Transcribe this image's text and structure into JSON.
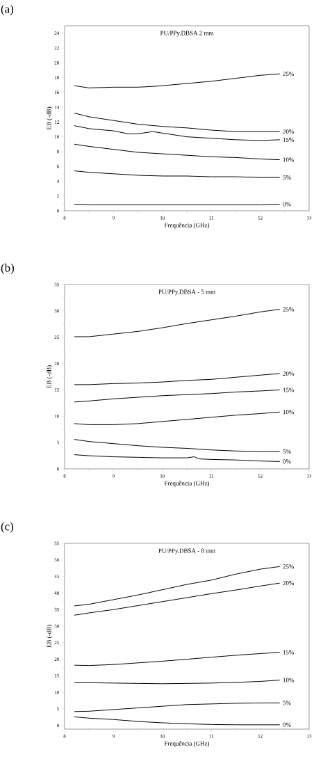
{
  "chart_data": [
    {
      "type": "line",
      "title": "PU/PPy.DBSA 2 mm",
      "xlabel": "Frequência (GHz)",
      "ylabel": "EB (-dB)",
      "annotations": [
        "(a)"
      ],
      "xlim": [
        8,
        13
      ],
      "ylim": [
        0,
        25
      ],
      "xticks": [
        8,
        9,
        10,
        11,
        12,
        13
      ],
      "yticks": [
        0,
        2,
        4,
        6,
        8,
        10,
        12,
        14,
        16,
        18,
        20,
        22,
        24
      ],
      "series": [
        {
          "name": "25%",
          "color": "#000000",
          "x": [
            8.2,
            8.5,
            9,
            9.5,
            9.8,
            10,
            10.5,
            11,
            11.5,
            12,
            12.4
          ],
          "values": [
            16.9,
            16.6,
            16.7,
            16.7,
            16.8,
            16.9,
            17.2,
            17.5,
            17.9,
            18.3,
            18.5
          ]
        },
        {
          "name": "20%",
          "color": "#000000",
          "x": [
            8.2,
            8.5,
            9,
            9.5,
            10,
            10.5,
            11,
            11.5,
            12,
            12.4
          ],
          "values": [
            13.2,
            12.7,
            12.2,
            11.7,
            11.4,
            11.2,
            10.9,
            10.7,
            10.7,
            10.7
          ]
        },
        {
          "name": "15%",
          "color": "#000000",
          "x": [
            8.2,
            8.5,
            9,
            9.3,
            9.5,
            9.8,
            10,
            10.5,
            11,
            11.5,
            12,
            12.4
          ],
          "values": [
            11.5,
            11.1,
            10.8,
            10.4,
            10.4,
            10.7,
            10.5,
            10.0,
            9.8,
            9.6,
            9.5,
            9.6
          ]
        },
        {
          "name": "10%",
          "color": "#000000",
          "x": [
            8.2,
            8.5,
            9,
            9.5,
            10,
            10.5,
            11,
            11.5,
            12,
            12.4
          ],
          "values": [
            9.0,
            8.7,
            8.3,
            7.9,
            7.7,
            7.5,
            7.3,
            7.2,
            7.0,
            6.9
          ]
        },
        {
          "name": "5%",
          "color": "#000000",
          "x": [
            8.2,
            8.5,
            9,
            9.5,
            10,
            10.5,
            11,
            11.5,
            12,
            12.4
          ],
          "values": [
            5.4,
            5.2,
            5.0,
            4.8,
            4.7,
            4.7,
            4.6,
            4.6,
            4.5,
            4.5
          ]
        },
        {
          "name": "0%",
          "color": "#000000",
          "x": [
            8.2,
            8.5,
            9,
            9.5,
            10,
            10.5,
            11,
            11.5,
            12,
            12.4
          ],
          "values": [
            0.9,
            0.8,
            0.8,
            0.8,
            0.8,
            0.8,
            0.8,
            0.8,
            0.8,
            0.9
          ]
        }
      ]
    },
    {
      "type": "line",
      "title": "PU/PPy.DBSA - 5 mm",
      "xlabel": "Frequência (GHz)",
      "ylabel": "EB (-dB)",
      "annotations": [
        "(b)"
      ],
      "xlim": [
        8,
        13
      ],
      "ylim": [
        0,
        35
      ],
      "xticks": [
        8,
        9,
        10,
        11,
        12,
        13
      ],
      "yticks": [
        0,
        5,
        10,
        15,
        20,
        25,
        30,
        35
      ],
      "series": [
        {
          "name": "25%",
          "color": "#000000",
          "x": [
            8.2,
            8.5,
            9,
            9.5,
            10,
            10.5,
            11,
            11.5,
            12,
            12.4
          ],
          "values": [
            25.1,
            25.1,
            25.6,
            26.1,
            26.8,
            27.6,
            28.3,
            29.0,
            29.8,
            30.3
          ]
        },
        {
          "name": "20%",
          "color": "#000000",
          "x": [
            8.2,
            8.5,
            9,
            9.5,
            10,
            10.5,
            11,
            11.5,
            12,
            12.4
          ],
          "values": [
            16.0,
            16.0,
            16.2,
            16.3,
            16.5,
            16.8,
            17.0,
            17.4,
            17.8,
            18.1
          ]
        },
        {
          "name": "15%",
          "color": "#000000",
          "x": [
            8.2,
            8.5,
            9,
            9.5,
            10,
            10.5,
            11,
            11.5,
            12,
            12.4
          ],
          "values": [
            12.7,
            12.9,
            13.3,
            13.6,
            13.9,
            14.1,
            14.3,
            14.6,
            14.8,
            15.0
          ]
        },
        {
          "name": "10%",
          "color": "#000000",
          "x": [
            8.2,
            8.5,
            9,
            9.5,
            10,
            10.5,
            11,
            11.5,
            12,
            12.4
          ],
          "values": [
            8.6,
            8.4,
            8.4,
            8.6,
            9.0,
            9.4,
            9.8,
            10.2,
            10.5,
            10.8
          ]
        },
        {
          "name": "5%",
          "color": "#000000",
          "x": [
            8.2,
            8.5,
            9,
            9.5,
            10,
            10.5,
            11,
            11.5,
            12,
            12.4
          ],
          "values": [
            5.6,
            5.2,
            4.8,
            4.4,
            4.1,
            3.9,
            3.6,
            3.4,
            3.3,
            3.3
          ]
        },
        {
          "name": "0%",
          "color": "#000000",
          "x": [
            8.2,
            8.5,
            9,
            9.5,
            10,
            10.5,
            10.65,
            10.75,
            11,
            11.5,
            12,
            12.4
          ],
          "values": [
            2.7,
            2.5,
            2.3,
            2.2,
            2.1,
            2.1,
            2.3,
            1.9,
            1.8,
            1.7,
            1.5,
            1.4
          ]
        }
      ]
    },
    {
      "type": "line",
      "title": "PU/PPy.DBSA - 8 mm",
      "xlabel": "Frequência (GHz)",
      "ylabel": "EB (-dB)",
      "annotations": [
        "(c)"
      ],
      "xlim": [
        8,
        13
      ],
      "ylim": [
        -1.1,
        55
      ],
      "xticks": [
        8,
        9,
        10,
        11,
        12,
        13
      ],
      "yticks": [
        0,
        5,
        10,
        15,
        20,
        25,
        30,
        35,
        40,
        45,
        50,
        55
      ],
      "series": [
        {
          "name": "25%",
          "color": "#000000",
          "x": [
            8.2,
            8.5,
            9,
            9.5,
            10,
            10.5,
            11,
            11.5,
            12,
            12.4
          ],
          "values": [
            36.1,
            36.6,
            38.0,
            39.4,
            41.0,
            42.6,
            43.9,
            45.7,
            47.2,
            48.0
          ]
        },
        {
          "name": "20%",
          "color": "#000000",
          "x": [
            8.2,
            8.5,
            9,
            9.5,
            10,
            10.5,
            11,
            11.5,
            12,
            12.4
          ],
          "values": [
            33.3,
            34.0,
            35.0,
            36.2,
            37.4,
            38.6,
            39.8,
            40.9,
            42.1,
            43.0
          ]
        },
        {
          "name": "15%",
          "color": "#000000",
          "x": [
            8.2,
            8.5,
            9,
            9.5,
            10,
            10.5,
            11,
            11.5,
            12,
            12.4
          ],
          "values": [
            18.2,
            18.1,
            18.4,
            18.9,
            19.4,
            20.0,
            20.6,
            21.2,
            21.7,
            22.1
          ]
        },
        {
          "name": "10%",
          "color": "#000000",
          "x": [
            8.2,
            8.5,
            9,
            9.5,
            10,
            10.5,
            11,
            11.5,
            12,
            12.4
          ],
          "values": [
            12.9,
            12.9,
            12.8,
            12.7,
            12.6,
            12.7,
            12.8,
            13.0,
            13.3,
            13.7
          ]
        },
        {
          "name": "5%",
          "color": "#000000",
          "x": [
            8.2,
            8.5,
            9,
            9.5,
            10,
            10.5,
            11,
            11.5,
            12,
            12.4
          ],
          "values": [
            4.2,
            4.3,
            4.8,
            5.3,
            5.8,
            6.3,
            6.5,
            6.7,
            6.8,
            6.8
          ]
        },
        {
          "name": "0%",
          "color": "#000000",
          "x": [
            8.2,
            8.5,
            9,
            9.5,
            10,
            10.5,
            11,
            11.5,
            12,
            12.4
          ],
          "values": [
            2.6,
            2.2,
            1.8,
            1.2,
            0.8,
            0.5,
            0.3,
            0.2,
            0.2,
            0.2
          ]
        }
      ]
    }
  ]
}
